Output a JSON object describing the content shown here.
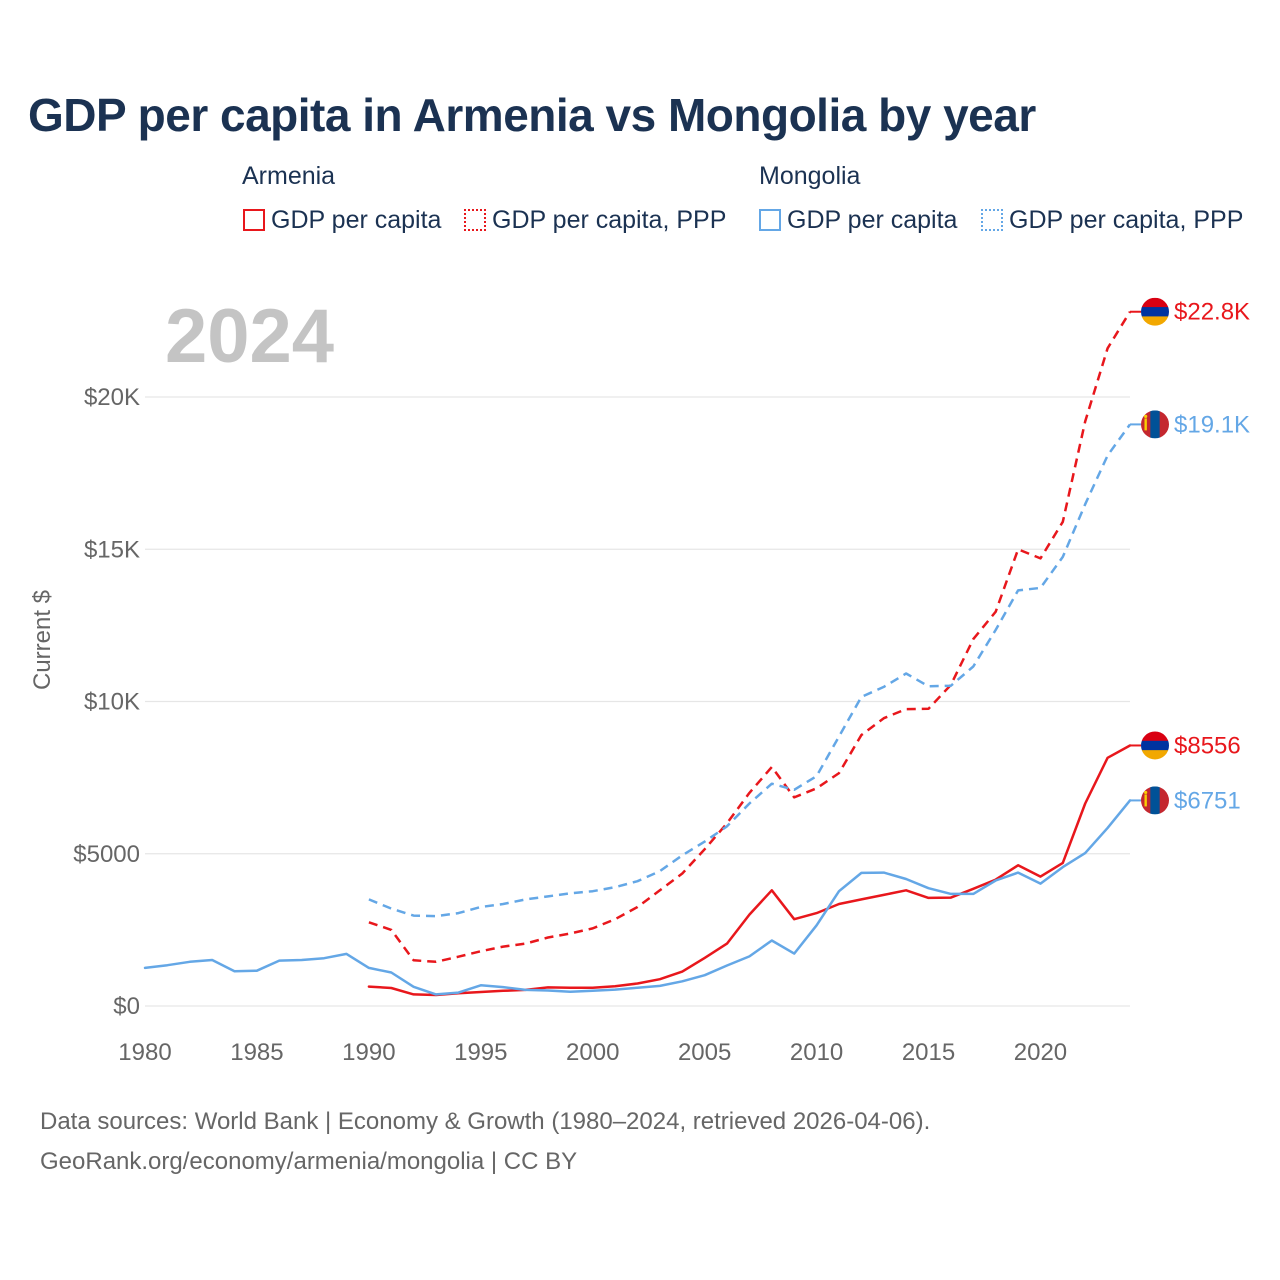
{
  "title": "GDP per capita in Armenia vs Mongolia by year",
  "legend": {
    "groups": [
      {
        "name": "Armenia",
        "items": [
          "GDP per capita",
          "GDP per capita, PPP"
        ]
      },
      {
        "name": "Mongolia",
        "items": [
          "GDP per capita",
          "GDP per capita, PPP"
        ]
      }
    ]
  },
  "year_label": "2024",
  "footer": {
    "line1": "Data sources: World Bank | Economy & Growth (1980–2024, retrieved 2026-04-06).",
    "line2": "GeoRank.org/economy/armenia/mongolia | CC BY"
  },
  "colors": {
    "armenia": "#e8171c",
    "mongolia": "#64a7e6",
    "grid": "#e6e6e6",
    "title": "#1b3252",
    "muted": "#666666"
  },
  "flags": {
    "armenia": "armenia-flag-icon",
    "mongolia": "mongolia-flag-icon"
  },
  "chart_data": {
    "type": "line",
    "title": "GDP per capita in Armenia vs Mongolia by year",
    "xlabel": "",
    "ylabel": "Current $",
    "xlim": [
      1980,
      2024
    ],
    "ylim": [
      0,
      23000
    ],
    "x_ticks": [
      {
        "value": 1980,
        "label": "1980"
      },
      {
        "value": 1985,
        "label": "1985"
      },
      {
        "value": 1990,
        "label": "1990"
      },
      {
        "value": 1995,
        "label": "1995"
      },
      {
        "value": 2000,
        "label": "2000"
      },
      {
        "value": 2005,
        "label": "2005"
      },
      {
        "value": 2010,
        "label": "2010"
      },
      {
        "value": 2015,
        "label": "2015"
      },
      {
        "value": 2020,
        "label": "2020"
      }
    ],
    "y_ticks": [
      {
        "value": 0,
        "label": "$0"
      },
      {
        "value": 5000,
        "label": "$5000"
      },
      {
        "value": 10000,
        "label": "$10K"
      },
      {
        "value": 15000,
        "label": "$15K"
      },
      {
        "value": 20000,
        "label": "$20K"
      }
    ],
    "series": [
      {
        "name": "Armenia GDP per capita",
        "country": "armenia",
        "style": "solid",
        "color": "#e8171c",
        "end_label": "$8556",
        "x": [
          1990,
          1991,
          1992,
          1993,
          1994,
          1995,
          1996,
          1997,
          1998,
          1999,
          2000,
          2001,
          2002,
          2003,
          2004,
          2005,
          2006,
          2007,
          2008,
          2009,
          2010,
          2011,
          2012,
          2013,
          2014,
          2015,
          2016,
          2017,
          2018,
          2019,
          2020,
          2021,
          2022,
          2023,
          2024
        ],
        "values": [
          637,
          590,
          380,
          360,
          420,
          460,
          500,
          530,
          610,
          600,
          600,
          650,
          740,
          880,
          1130,
          1580,
          2050,
          3000,
          3800,
          2850,
          3050,
          3350,
          3500,
          3650,
          3800,
          3550,
          3560,
          3850,
          4150,
          4620,
          4250,
          4700,
          6650,
          8150,
          8556
        ]
      },
      {
        "name": "Armenia GDP per capita, PPP",
        "country": "armenia",
        "style": "dashed",
        "color": "#e8171c",
        "end_label": "$22.8K",
        "x": [
          1990,
          1991,
          1992,
          1993,
          1994,
          1995,
          1996,
          1997,
          1998,
          1999,
          2000,
          2001,
          2002,
          2003,
          2004,
          2005,
          2006,
          2007,
          2008,
          2009,
          2010,
          2011,
          2012,
          2013,
          2014,
          2015,
          2016,
          2017,
          2018,
          2019,
          2020,
          2021,
          2022,
          2023,
          2024
        ],
        "values": [
          2750,
          2500,
          1500,
          1450,
          1620,
          1800,
          1950,
          2050,
          2250,
          2380,
          2550,
          2850,
          3250,
          3800,
          4350,
          5150,
          6000,
          7000,
          7850,
          6850,
          7150,
          7650,
          8900,
          9450,
          9750,
          9760,
          10550,
          12050,
          12950,
          15000,
          14700,
          15900,
          19200,
          21600,
          22800
        ]
      },
      {
        "name": "Mongolia GDP per capita",
        "country": "mongolia",
        "style": "solid",
        "color": "#64a7e6",
        "end_label": "$6751",
        "x": [
          1980,
          1981,
          1982,
          1983,
          1984,
          1985,
          1986,
          1987,
          1988,
          1989,
          1990,
          1991,
          1992,
          1993,
          1994,
          1995,
          1996,
          1997,
          1998,
          1999,
          2000,
          2001,
          2002,
          2003,
          2004,
          2005,
          2006,
          2007,
          2008,
          2009,
          2010,
          2011,
          2012,
          2013,
          2014,
          2015,
          2016,
          2017,
          2018,
          2019,
          2020,
          2021,
          2022,
          2023,
          2024
        ],
        "values": [
          1250,
          1340,
          1450,
          1510,
          1140,
          1160,
          1490,
          1510,
          1570,
          1710,
          1250,
          1100,
          630,
          380,
          440,
          680,
          620,
          530,
          510,
          470,
          500,
          540,
          600,
          660,
          810,
          1010,
          1330,
          1630,
          2150,
          1720,
          2650,
          3770,
          4370,
          4380,
          4170,
          3870,
          3680,
          3680,
          4120,
          4380,
          4020,
          4560,
          5020,
          5850,
          6751
        ]
      },
      {
        "name": "Mongolia GDP per capita, PPP",
        "country": "mongolia",
        "style": "dashed",
        "color": "#64a7e6",
        "end_label": "$19.1K",
        "x": [
          1990,
          1991,
          1992,
          1993,
          1994,
          1995,
          1996,
          1997,
          1998,
          1999,
          2000,
          2001,
          2002,
          2003,
          2004,
          2005,
          2006,
          2007,
          2008,
          2009,
          2010,
          2011,
          2012,
          2013,
          2014,
          2015,
          2016,
          2017,
          2018,
          2019,
          2020,
          2021,
          2022,
          2023,
          2024
        ],
        "values": [
          3500,
          3200,
          2970,
          2950,
          3050,
          3250,
          3350,
          3500,
          3600,
          3700,
          3770,
          3900,
          4100,
          4430,
          4950,
          5400,
          5900,
          6650,
          7300,
          7100,
          7550,
          8850,
          10150,
          10480,
          10920,
          10500,
          10520,
          11150,
          12350,
          13650,
          13730,
          14750,
          16480,
          18080,
          19100
        ]
      }
    ]
  }
}
